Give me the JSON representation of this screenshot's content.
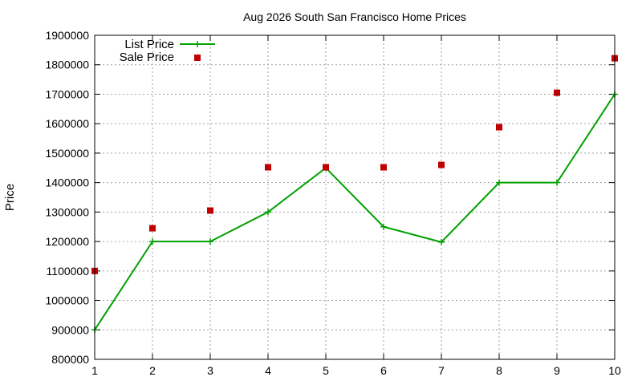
{
  "chart_data": {
    "type": "line",
    "title": "Aug 2026 South San Francisco Home Prices",
    "xlabel": "",
    "ylabel": "Price",
    "x": [
      1,
      2,
      3,
      4,
      5,
      6,
      7,
      8,
      9,
      10
    ],
    "xlim": [
      1,
      10
    ],
    "ylim": [
      800000,
      1900000
    ],
    "xticks": [
      "1",
      "2",
      "3",
      "4",
      "5",
      "6",
      "7",
      "8",
      "9",
      "10"
    ],
    "yticks": [
      "800000",
      "900000",
      "1000000",
      "1100000",
      "1200000",
      "1300000",
      "1400000",
      "1500000",
      "1600000",
      "1700000",
      "1800000",
      "1900000"
    ],
    "grid": true,
    "legend_position": "top-left",
    "series": [
      {
        "name": "List Price",
        "style": "line-with-plus-markers",
        "color": "#00a000",
        "values": [
          900000,
          1200000,
          1200000,
          1300000,
          1450000,
          1250000,
          1198000,
          1400000,
          1400000,
          1700000
        ]
      },
      {
        "name": "Sale Price",
        "style": "square-markers",
        "color": "#c00000",
        "values": [
          1100000,
          1245000,
          1305000,
          1452000,
          1452000,
          1452000,
          1460000,
          1588000,
          1705000,
          1822000
        ]
      }
    ]
  }
}
